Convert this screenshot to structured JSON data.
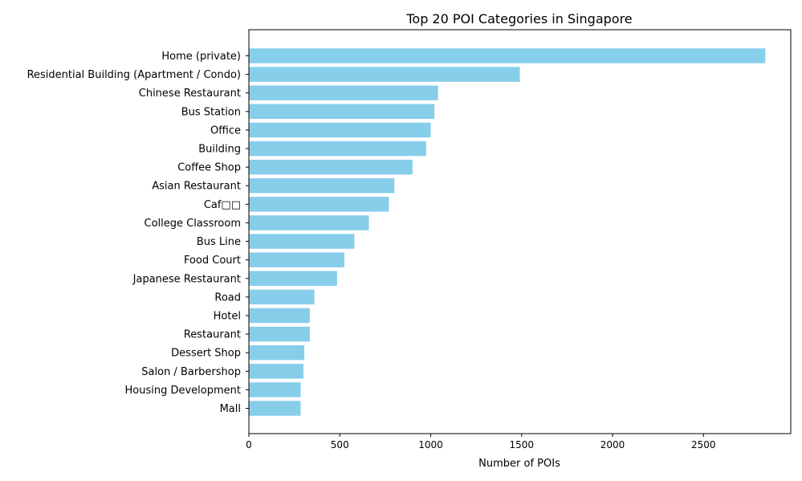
{
  "chart_data": {
    "type": "bar",
    "orientation": "horizontal",
    "title": "Top 20 POI Categories in Singapore",
    "xlabel": "Number of POIs",
    "ylabel": "",
    "xlim": [
      0,
      2980
    ],
    "xticks": [
      0,
      500,
      1000,
      1500,
      2000,
      2500
    ],
    "grid": false,
    "bar_color": "#87CEEB",
    "categories": [
      "Home (private)",
      "Residential Building (Apartment / Condo)",
      "Chinese Restaurant",
      "Bus Station",
      "Office",
      "Building",
      "Coffee Shop",
      "Asian Restaurant",
      "Caf□□",
      "College Classroom",
      "Bus Line",
      "Food Court",
      "Japanese Restaurant",
      "Road",
      "Hotel",
      "Restaurant",
      "Dessert Shop",
      "Salon / Barbershop",
      "Housing Development",
      "Mall"
    ],
    "values": [
      2840,
      1490,
      1040,
      1020,
      1000,
      975,
      900,
      800,
      770,
      660,
      580,
      525,
      485,
      360,
      335,
      335,
      305,
      300,
      285,
      285
    ]
  }
}
